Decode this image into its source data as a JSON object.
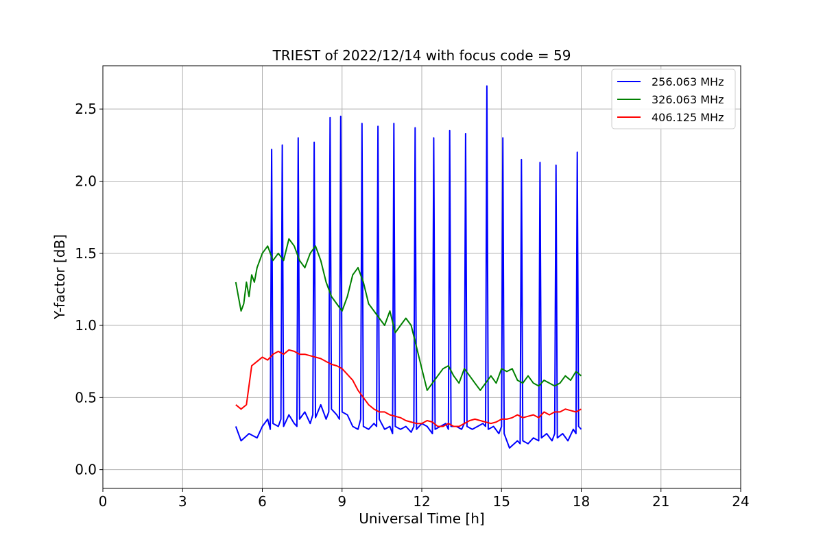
{
  "chart_data": {
    "type": "line",
    "title": "TRIEST of 2022/12/14 with focus code = 59",
    "xlabel": "Universal Time [h]",
    "ylabel": "Y-factor [dB]",
    "xlim": [
      0,
      24
    ],
    "ylim": [
      -0.13,
      2.8
    ],
    "xticks": [
      0,
      3,
      6,
      9,
      12,
      15,
      18,
      21,
      24
    ],
    "xtick_labels": [
      "0",
      "3",
      "6",
      "9",
      "12",
      "15",
      "18",
      "21",
      "24"
    ],
    "yticks": [
      0.0,
      0.5,
      1.0,
      1.5,
      2.0,
      2.5
    ],
    "ytick_labels": [
      "0.0",
      "0.5",
      "1.0",
      "1.5",
      "2.0",
      "2.5"
    ],
    "grid": true,
    "legend_position": "top-right",
    "series": [
      {
        "name": "256.063 MHz",
        "color": "#0000ff",
        "x": [
          5.0,
          5.2,
          5.5,
          5.8,
          6.0,
          6.2,
          6.3,
          6.35,
          6.4,
          6.6,
          6.7,
          6.75,
          6.8,
          7.0,
          7.2,
          7.3,
          7.35,
          7.4,
          7.6,
          7.8,
          7.9,
          7.95,
          8.0,
          8.2,
          8.4,
          8.5,
          8.55,
          8.6,
          8.8,
          8.9,
          8.95,
          9.0,
          9.2,
          9.4,
          9.6,
          9.7,
          9.75,
          9.8,
          10.0,
          10.2,
          10.3,
          10.35,
          10.4,
          10.6,
          10.8,
          10.9,
          10.95,
          11.0,
          11.2,
          11.4,
          11.6,
          11.7,
          11.75,
          11.8,
          12.0,
          12.2,
          12.4,
          12.45,
          12.5,
          12.7,
          12.9,
          13.0,
          13.05,
          13.1,
          13.3,
          13.5,
          13.6,
          13.65,
          13.7,
          13.9,
          14.1,
          14.3,
          14.4,
          14.45,
          14.5,
          14.7,
          14.9,
          15.0,
          15.05,
          15.1,
          15.3,
          15.6,
          15.7,
          15.75,
          15.8,
          16.0,
          16.2,
          16.4,
          16.45,
          16.5,
          16.7,
          16.9,
          17.0,
          17.05,
          17.1,
          17.3,
          17.5,
          17.7,
          17.8,
          17.85,
          17.9,
          18.0
        ],
        "y": [
          0.3,
          0.2,
          0.25,
          0.22,
          0.3,
          0.35,
          0.28,
          2.22,
          0.32,
          0.3,
          0.35,
          2.25,
          0.3,
          0.38,
          0.32,
          0.3,
          2.3,
          0.35,
          0.4,
          0.32,
          0.38,
          2.27,
          0.36,
          0.45,
          0.35,
          0.4,
          2.44,
          0.42,
          0.38,
          0.35,
          2.45,
          0.4,
          0.38,
          0.3,
          0.28,
          0.35,
          2.4,
          0.3,
          0.28,
          0.32,
          0.3,
          2.38,
          0.35,
          0.28,
          0.3,
          0.25,
          2.4,
          0.3,
          0.28,
          0.3,
          0.26,
          0.3,
          2.37,
          0.28,
          0.32,
          0.3,
          0.25,
          2.3,
          0.28,
          0.3,
          0.32,
          0.28,
          2.35,
          0.3,
          0.3,
          0.28,
          0.32,
          2.33,
          0.3,
          0.28,
          0.3,
          0.32,
          0.3,
          2.66,
          0.28,
          0.3,
          0.25,
          0.3,
          2.3,
          0.25,
          0.15,
          0.2,
          0.18,
          2.15,
          0.2,
          0.18,
          0.22,
          0.2,
          2.13,
          0.22,
          0.25,
          0.2,
          0.25,
          2.11,
          0.22,
          0.25,
          0.2,
          0.28,
          0.25,
          2.2,
          0.3,
          0.28
        ]
      },
      {
        "name": "326.063 MHz",
        "color": "#008000",
        "x": [
          5.0,
          5.1,
          5.2,
          5.3,
          5.4,
          5.5,
          5.6,
          5.7,
          5.8,
          6.0,
          6.2,
          6.4,
          6.6,
          6.8,
          7.0,
          7.2,
          7.4,
          7.6,
          7.8,
          8.0,
          8.2,
          8.4,
          8.6,
          8.8,
          9.0,
          9.2,
          9.4,
          9.6,
          9.8,
          10.0,
          10.2,
          10.4,
          10.6,
          10.8,
          11.0,
          11.2,
          11.4,
          11.6,
          11.8,
          12.0,
          12.2,
          12.4,
          12.6,
          12.8,
          13.0,
          13.2,
          13.4,
          13.6,
          13.8,
          14.0,
          14.2,
          14.4,
          14.6,
          14.8,
          15.0,
          15.2,
          15.4,
          15.6,
          15.8,
          16.0,
          16.2,
          16.4,
          16.6,
          16.8,
          17.0,
          17.2,
          17.4,
          17.6,
          17.8,
          18.0
        ],
        "y": [
          1.3,
          1.2,
          1.1,
          1.15,
          1.3,
          1.2,
          1.35,
          1.3,
          1.4,
          1.5,
          1.55,
          1.45,
          1.5,
          1.45,
          1.6,
          1.55,
          1.45,
          1.4,
          1.5,
          1.55,
          1.45,
          1.3,
          1.2,
          1.15,
          1.1,
          1.2,
          1.35,
          1.4,
          1.3,
          1.15,
          1.1,
          1.05,
          1.0,
          1.1,
          0.95,
          1.0,
          1.05,
          1.0,
          0.85,
          0.7,
          0.55,
          0.6,
          0.65,
          0.7,
          0.72,
          0.65,
          0.6,
          0.7,
          0.65,
          0.6,
          0.55,
          0.6,
          0.65,
          0.6,
          0.7,
          0.68,
          0.7,
          0.62,
          0.6,
          0.65,
          0.6,
          0.58,
          0.62,
          0.6,
          0.58,
          0.6,
          0.65,
          0.62,
          0.68,
          0.65
        ]
      },
      {
        "name": "406.125 MHz",
        "color": "#ff0000",
        "x": [
          5.0,
          5.2,
          5.4,
          5.6,
          5.8,
          6.0,
          6.2,
          6.4,
          6.6,
          6.8,
          7.0,
          7.2,
          7.4,
          7.6,
          7.8,
          8.0,
          8.2,
          8.4,
          8.6,
          8.8,
          9.0,
          9.2,
          9.4,
          9.6,
          9.8,
          10.0,
          10.2,
          10.4,
          10.6,
          10.8,
          11.0,
          11.2,
          11.4,
          11.6,
          11.8,
          12.0,
          12.2,
          12.4,
          12.6,
          12.8,
          13.0,
          13.2,
          13.4,
          13.6,
          13.8,
          14.0,
          14.2,
          14.4,
          14.6,
          14.8,
          15.0,
          15.2,
          15.4,
          15.6,
          15.8,
          16.0,
          16.2,
          16.4,
          16.6,
          16.8,
          17.0,
          17.2,
          17.4,
          17.6,
          17.8,
          18.0
        ],
        "y": [
          0.45,
          0.42,
          0.45,
          0.72,
          0.75,
          0.78,
          0.76,
          0.8,
          0.82,
          0.8,
          0.83,
          0.82,
          0.8,
          0.8,
          0.79,
          0.78,
          0.77,
          0.75,
          0.73,
          0.72,
          0.7,
          0.66,
          0.62,
          0.55,
          0.5,
          0.45,
          0.42,
          0.4,
          0.4,
          0.38,
          0.37,
          0.36,
          0.34,
          0.33,
          0.32,
          0.32,
          0.34,
          0.33,
          0.3,
          0.3,
          0.32,
          0.3,
          0.3,
          0.32,
          0.34,
          0.35,
          0.34,
          0.33,
          0.32,
          0.33,
          0.35,
          0.35,
          0.36,
          0.38,
          0.36,
          0.37,
          0.38,
          0.36,
          0.4,
          0.38,
          0.4,
          0.4,
          0.42,
          0.41,
          0.4,
          0.42
        ]
      }
    ]
  }
}
